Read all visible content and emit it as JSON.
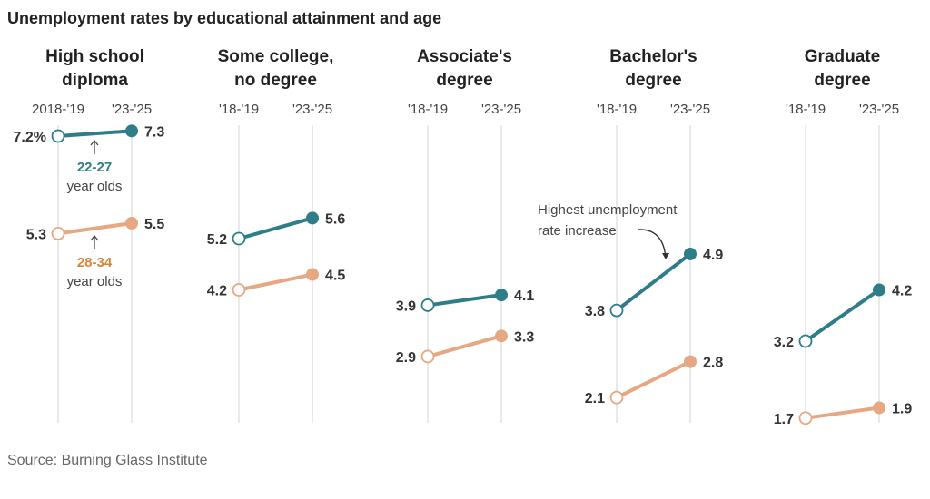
{
  "chart_data": {
    "type": "slope",
    "title": "Unemployment rates by educational attainment and age",
    "source": "Source: Burning Glass Institute",
    "colors": {
      "22-27": "#2e7d89",
      "28-34": "#e5a882",
      "22-27_text": "#2e7d89",
      "28-34_text": "#d98535"
    },
    "panels": [
      {
        "title": [
          "High school",
          "diploma"
        ],
        "periods": [
          "2018-'19",
          "'23-'25"
        ],
        "series": [
          {
            "name": "22-27",
            "values": [
              7.2,
              7.3
            ],
            "labels": [
              "7.2%",
              "7.3"
            ]
          },
          {
            "name": "28-34",
            "values": [
              5.3,
              5.5
            ],
            "labels": [
              "5.3",
              "5.5"
            ]
          }
        ]
      },
      {
        "title": [
          "Some college,",
          "no degree"
        ],
        "periods": [
          "'18-'19",
          "'23-'25"
        ],
        "series": [
          {
            "name": "22-27",
            "values": [
              5.2,
              5.6
            ],
            "labels": [
              "5.2",
              "5.6"
            ]
          },
          {
            "name": "28-34",
            "values": [
              4.2,
              4.5
            ],
            "labels": [
              "4.2",
              "4.5"
            ]
          }
        ]
      },
      {
        "title": [
          "Associate's",
          "degree"
        ],
        "periods": [
          "'18-'19",
          "'23-'25"
        ],
        "series": [
          {
            "name": "22-27",
            "values": [
              3.9,
              4.1
            ],
            "labels": [
              "3.9",
              "4.1"
            ]
          },
          {
            "name": "28-34",
            "values": [
              2.9,
              3.3
            ],
            "labels": [
              "2.9",
              "3.3"
            ]
          }
        ]
      },
      {
        "title": [
          "Bachelor's",
          "degree"
        ],
        "periods": [
          "'18-'19",
          "'23-'25"
        ],
        "series": [
          {
            "name": "22-27",
            "values": [
              3.8,
              4.9
            ],
            "labels": [
              "3.8",
              "4.9"
            ]
          },
          {
            "name": "28-34",
            "values": [
              2.1,
              2.8
            ],
            "labels": [
              "2.1",
              "2.8"
            ]
          }
        ]
      },
      {
        "title": [
          "Graduate",
          "degree"
        ],
        "periods": [
          "'18-'19",
          "'23-'25"
        ],
        "series": [
          {
            "name": "22-27",
            "values": [
              3.2,
              4.2
            ],
            "labels": [
              "3.2",
              "4.2"
            ]
          },
          {
            "name": "28-34",
            "values": [
              1.7,
              1.9
            ],
            "labels": [
              "1.7",
              "1.9"
            ]
          }
        ]
      }
    ],
    "annotations": {
      "group1": {
        "label": "22-27",
        "sub": "year olds"
      },
      "group2": {
        "label": "28-34",
        "sub": "year olds"
      },
      "highlight": [
        "Highest unemployment",
        "rate increase"
      ]
    }
  }
}
